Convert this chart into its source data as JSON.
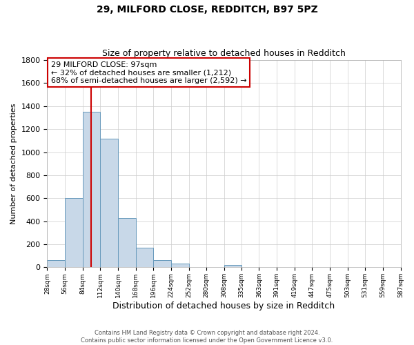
{
  "title1": "29, MILFORD CLOSE, REDDITCH, B97 5PZ",
  "title2": "Size of property relative to detached houses in Redditch",
  "xlabel": "Distribution of detached houses by size in Redditch",
  "ylabel": "Number of detached properties",
  "bin_edges": [
    28,
    56,
    84,
    112,
    140,
    168,
    196,
    224,
    252,
    280,
    308,
    335,
    363,
    391,
    419,
    447,
    475,
    503,
    531,
    559,
    587
  ],
  "bar_values": [
    60,
    600,
    1350,
    1120,
    430,
    170,
    60,
    35,
    0,
    0,
    20,
    0,
    0,
    0,
    0,
    0,
    0,
    0,
    0,
    0
  ],
  "bar_color": "#c8d8e8",
  "bar_edge_color": "#6699bb",
  "property_size": 97,
  "red_line_color": "#cc0000",
  "annotation_title": "29 MILFORD CLOSE: 97sqm",
  "annotation_line1": "← 32% of detached houses are smaller (1,212)",
  "annotation_line2": "68% of semi-detached houses are larger (2,592) →",
  "annotation_box_edge": "#cc0000",
  "ylim": [
    0,
    1800
  ],
  "yticks": [
    0,
    200,
    400,
    600,
    800,
    1000,
    1200,
    1400,
    1600,
    1800
  ],
  "x_tick_labels": [
    "28sqm",
    "56sqm",
    "84sqm",
    "112sqm",
    "140sqm",
    "168sqm",
    "196sqm",
    "224sqm",
    "252sqm",
    "280sqm",
    "308sqm",
    "335sqm",
    "363sqm",
    "391sqm",
    "419sqm",
    "447sqm",
    "475sqm",
    "503sqm",
    "531sqm",
    "559sqm",
    "587sqm"
  ],
  "footer1": "Contains HM Land Registry data © Crown copyright and database right 2024.",
  "footer2": "Contains public sector information licensed under the Open Government Licence v3.0.",
  "grid_color": "#cccccc",
  "background_color": "#ffffff",
  "title1_fontsize": 10,
  "title2_fontsize": 9,
  "xlabel_fontsize": 9,
  "ylabel_fontsize": 8,
  "footer_fontsize": 6
}
